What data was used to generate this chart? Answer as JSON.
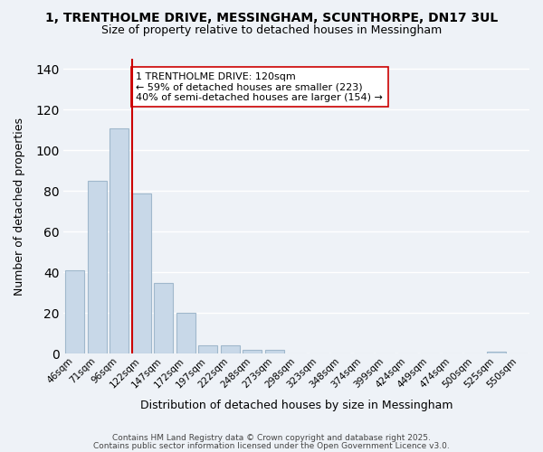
{
  "title": "1, TRENTHOLME DRIVE, MESSINGHAM, SCUNTHORPE, DN17 3UL",
  "subtitle": "Size of property relative to detached houses in Messingham",
  "xlabel": "Distribution of detached houses by size in Messingham",
  "ylabel": "Number of detached properties",
  "bar_color": "#c8d8e8",
  "bar_edgecolor": "#a0b8cc",
  "background_color": "#eef2f7",
  "grid_color": "#ffffff",
  "bin_labels": [
    "46sqm",
    "71sqm",
    "96sqm",
    "122sqm",
    "147sqm",
    "172sqm",
    "197sqm",
    "222sqm",
    "248sqm",
    "273sqm",
    "298sqm",
    "323sqm",
    "348sqm",
    "374sqm",
    "399sqm",
    "424sqm",
    "449sqm",
    "474sqm",
    "500sqm",
    "525sqm",
    "550sqm"
  ],
  "bar_values": [
    41,
    85,
    111,
    79,
    35,
    20,
    4,
    4,
    2,
    2,
    0,
    0,
    0,
    0,
    0,
    0,
    0,
    0,
    0,
    1,
    0
  ],
  "vline_x": 2.575,
  "vline_color": "#cc0000",
  "annotation_title": "1 TRENTHOLME DRIVE: 120sqm",
  "annotation_line1": "← 59% of detached houses are smaller (223)",
  "annotation_line2": "40% of semi-detached houses are larger (154) →",
  "ylim": [
    0,
    145
  ],
  "yticks": [
    0,
    20,
    40,
    60,
    80,
    100,
    120,
    140
  ],
  "footer1": "Contains HM Land Registry data © Crown copyright and database right 2025.",
  "footer2": "Contains public sector information licensed under the Open Government Licence v3.0."
}
